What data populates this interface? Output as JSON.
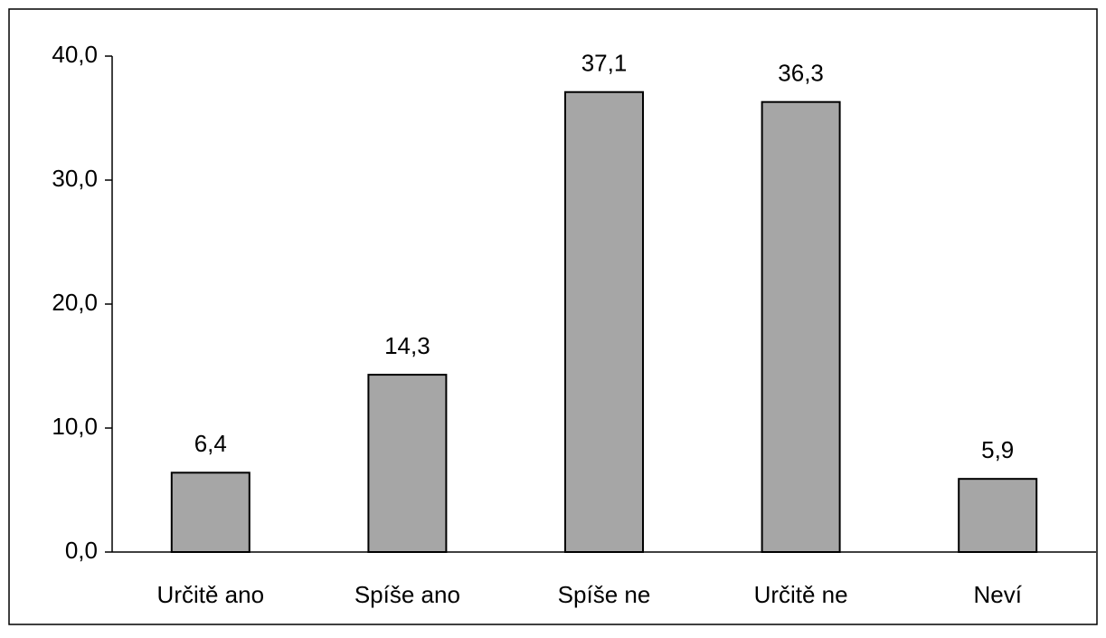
{
  "chart_data": {
    "type": "bar",
    "categories": [
      "Určitě ano",
      "Spíše ano",
      "Spíše ne",
      "Určitě ne",
      "Neví"
    ],
    "values": [
      6.4,
      14.3,
      37.1,
      36.3,
      5.9
    ],
    "value_labels": [
      "6,4",
      "14,3",
      "37,1",
      "36,3",
      "5,9"
    ],
    "color": "#a6a6a6",
    "ylim": [
      0,
      40
    ],
    "yticks": [
      {
        "value": 0,
        "label": "0,0"
      },
      {
        "value": 10,
        "label": "10,0"
      },
      {
        "value": 20,
        "label": "20,0"
      },
      {
        "value": 30,
        "label": "30,0"
      },
      {
        "value": 40,
        "label": "40,0"
      }
    ],
    "grid": false
  }
}
